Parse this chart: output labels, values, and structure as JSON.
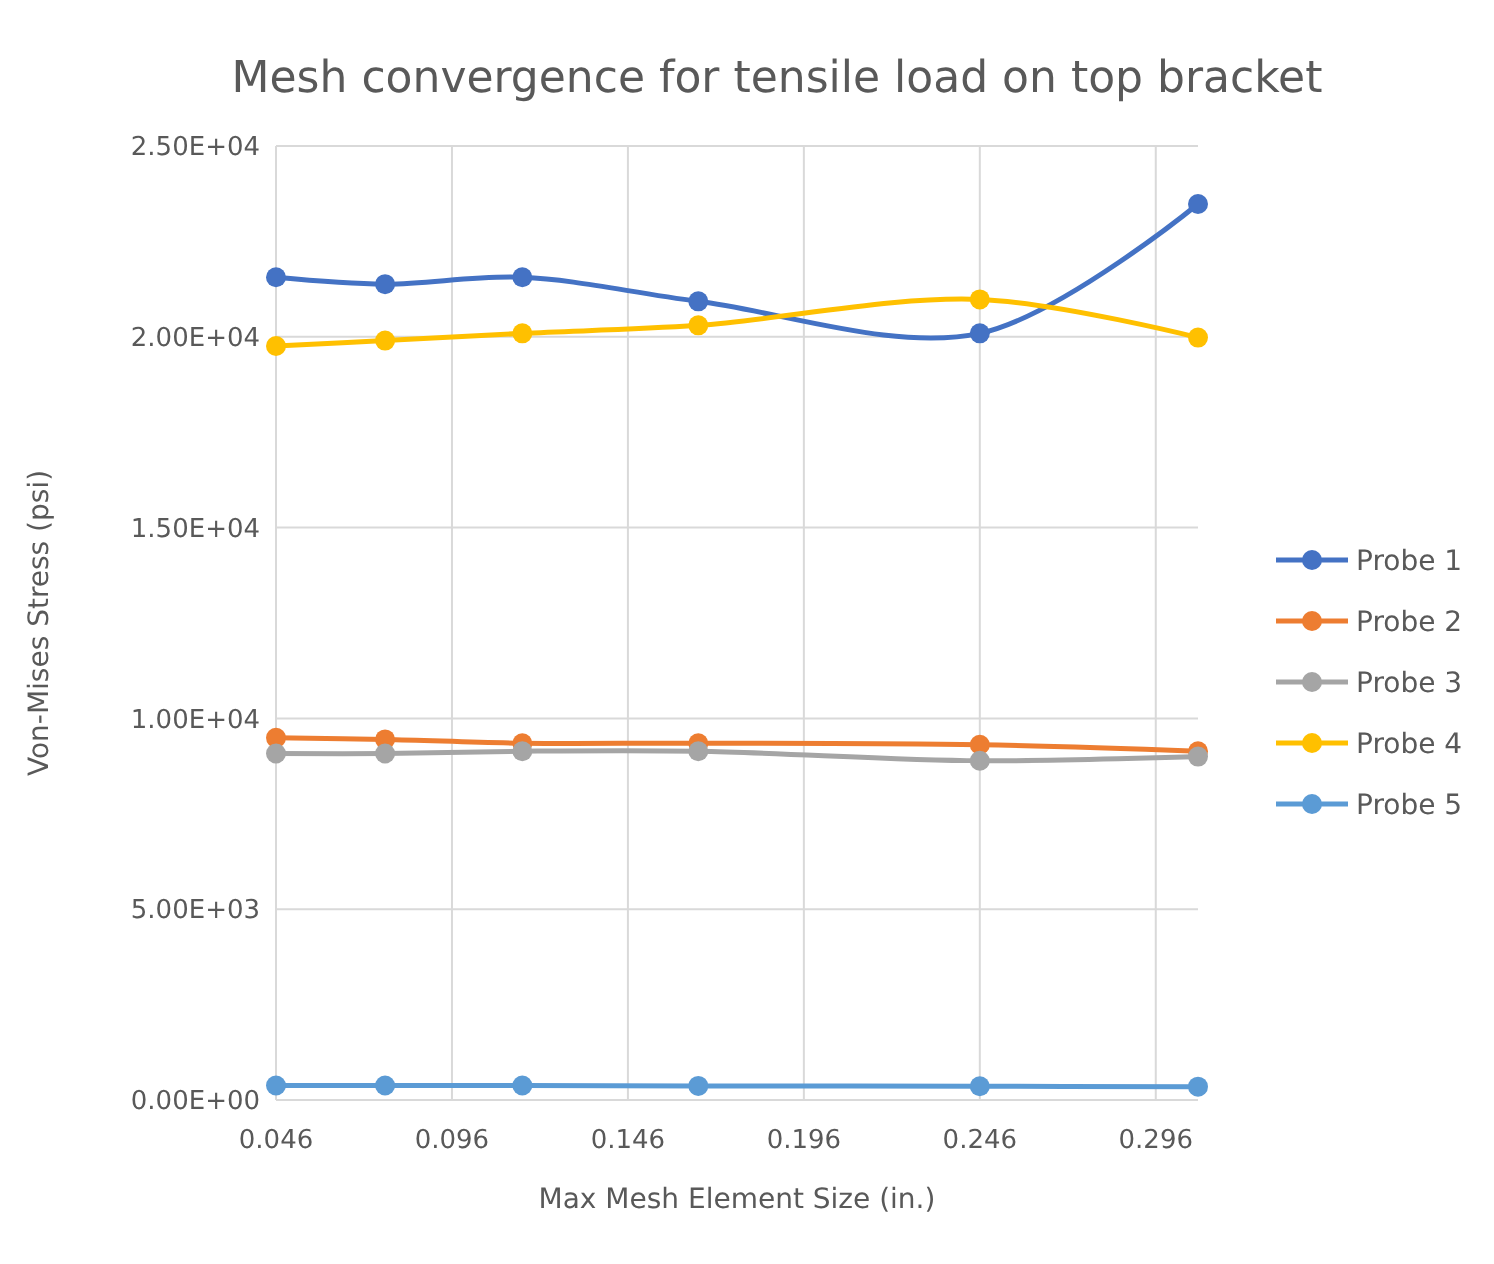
{
  "chart_data": {
    "type": "line",
    "title": "Mesh convergence for tensile load on top bracket",
    "xlabel": "Max Mesh Element Size (in.)",
    "ylabel": "Von-Mises Stress (psi)",
    "x": [
      0.046,
      0.077,
      0.116,
      0.166,
      0.246,
      0.308
    ],
    "series": [
      {
        "name": "Probe 1",
        "color": "#4472c4",
        "values": [
          21560,
          21380,
          21560,
          20930,
          20090,
          23480
        ]
      },
      {
        "name": "Probe 2",
        "color": "#ed7d31",
        "values": [
          9490,
          9450,
          9350,
          9350,
          9310,
          9140
        ]
      },
      {
        "name": "Probe 3",
        "color": "#a5a5a5",
        "values": [
          9080,
          9080,
          9140,
          9140,
          8890,
          9000
        ]
      },
      {
        "name": "Probe 4",
        "color": "#ffc000",
        "values": [
          19760,
          19900,
          20090,
          20300,
          20980,
          19980
        ]
      },
      {
        "name": "Probe 5",
        "color": "#5b9bd5",
        "values": [
          380,
          380,
          380,
          370,
          360,
          350
        ]
      }
    ],
    "xlim": [
      0.046,
      0.308
    ],
    "xticks": [
      0.046,
      0.096,
      0.146,
      0.196,
      0.246,
      0.296
    ],
    "ylim": [
      0,
      25000
    ],
    "yticks": [
      {
        "value": 0,
        "label": "0.00E+00"
      },
      {
        "value": 5000,
        "label": "5.00E+03"
      },
      {
        "value": 10000,
        "label": "1.00E+04"
      },
      {
        "value": 15000,
        "label": "1.50E+04"
      },
      {
        "value": 20000,
        "label": "2.00E+04"
      },
      {
        "value": 25000,
        "label": "2.50E+04"
      }
    ],
    "grid": true,
    "legend": "right",
    "marker": "circle",
    "line_style": "solid"
  }
}
